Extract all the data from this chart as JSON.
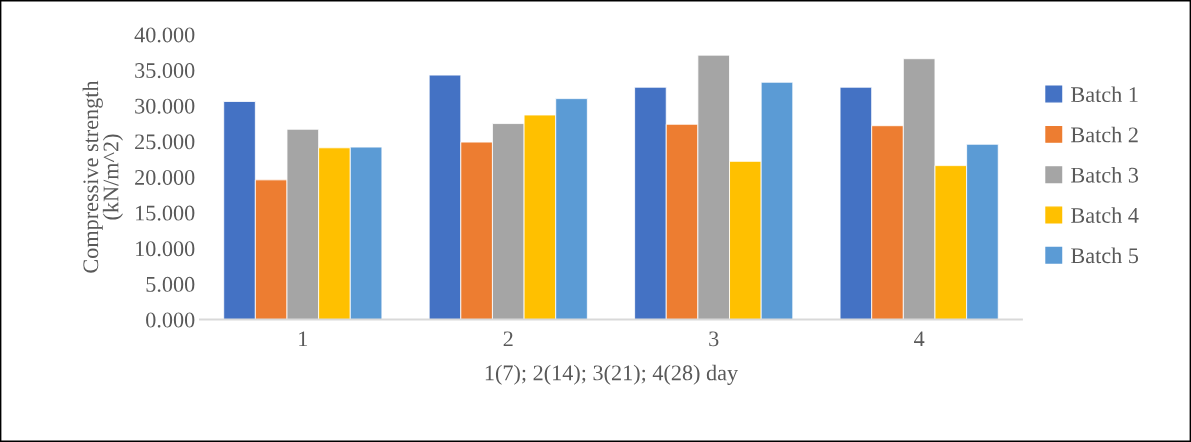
{
  "chart_data": {
    "type": "bar",
    "xlabel": "1(7); 2(14); 3(21); 4(28) day",
    "ylabel": "Compressive strength\n(kN/m^2)",
    "categories": [
      "1",
      "2",
      "3",
      "4"
    ],
    "series": [
      {
        "name": "Batch 1",
        "color": "#4472c4",
        "values": [
          30.6,
          34.3,
          32.6,
          32.6
        ]
      },
      {
        "name": "Batch 2",
        "color": "#ed7d31",
        "values": [
          19.6,
          24.9,
          27.4,
          27.2
        ]
      },
      {
        "name": "Batch 3",
        "color": "#a5a5a5",
        "values": [
          26.7,
          27.5,
          37.1,
          36.6
        ]
      },
      {
        "name": "Batch 4",
        "color": "#ffc000",
        "values": [
          24.1,
          28.7,
          22.2,
          21.6
        ]
      },
      {
        "name": "Batch 5",
        "color": "#5b9bd5",
        "values": [
          24.2,
          31.0,
          33.3,
          24.6
        ]
      }
    ],
    "ylim": [
      0,
      40
    ],
    "yticks": [
      {
        "value": 0,
        "label": "0.000"
      },
      {
        "value": 5,
        "label": "5.000"
      },
      {
        "value": 10,
        "label": "10.000"
      },
      {
        "value": 15,
        "label": "15.000"
      },
      {
        "value": 20,
        "label": "20.000"
      },
      {
        "value": 25,
        "label": "25.000"
      },
      {
        "value": 30,
        "label": "30.000"
      },
      {
        "value": 35,
        "label": "35.000"
      },
      {
        "value": 40,
        "label": "40.000"
      }
    ],
    "grid": false,
    "legend": "right"
  }
}
